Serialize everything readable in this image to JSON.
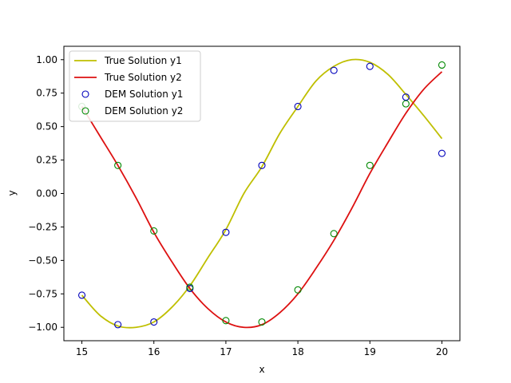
{
  "chart_data": {
    "type": "line",
    "title": "",
    "xlabel": "x",
    "ylabel": "y",
    "xlim": [
      14.75,
      20.25
    ],
    "ylim": [
      -1.1,
      1.1
    ],
    "xticks": [
      15,
      16,
      17,
      18,
      19,
      20
    ],
    "xtick_labels": [
      "15",
      "16",
      "17",
      "18",
      "19",
      "20"
    ],
    "yticks": [
      -1.0,
      -0.75,
      -0.5,
      -0.25,
      0.0,
      0.25,
      0.5,
      0.75,
      1.0
    ],
    "ytick_labels": [
      "−1.00",
      "−0.75",
      "−0.50",
      "−0.25",
      "0.00",
      "0.25",
      "0.50",
      "0.75",
      "1.00"
    ],
    "grid": false,
    "legend_position": "top-left",
    "series": [
      {
        "name": "True Solution y1",
        "kind": "line",
        "color": "#bfbf00",
        "x": [
          15.0,
          15.25,
          15.5,
          15.75,
          16.0,
          16.25,
          16.5,
          16.75,
          17.0,
          17.25,
          17.5,
          17.75,
          18.0,
          18.25,
          18.5,
          18.75,
          19.0,
          19.25,
          19.5,
          19.75,
          20.0
        ],
        "y": [
          -0.76,
          -0.91,
          -0.99,
          -1.0,
          -0.96,
          -0.85,
          -0.69,
          -0.48,
          -0.27,
          0.0,
          0.2,
          0.45,
          0.65,
          0.84,
          0.95,
          1.0,
          0.98,
          0.89,
          0.74,
          0.58,
          0.41
        ]
      },
      {
        "name": "True Solution y2",
        "kind": "line",
        "color": "#dd1111",
        "x": [
          15.0,
          15.25,
          15.5,
          15.75,
          16.0,
          16.25,
          16.5,
          16.75,
          17.0,
          17.25,
          17.5,
          17.75,
          18.0,
          18.25,
          18.5,
          18.75,
          19.0,
          19.25,
          19.5,
          19.75,
          20.0
        ],
        "y": [
          0.65,
          0.43,
          0.21,
          -0.03,
          -0.29,
          -0.51,
          -0.71,
          -0.86,
          -0.96,
          -1.0,
          -0.98,
          -0.89,
          -0.75,
          -0.56,
          -0.35,
          -0.11,
          0.15,
          0.38,
          0.6,
          0.78,
          0.91
        ]
      },
      {
        "name": "DEM Solution y1",
        "kind": "scatter",
        "color": "#0000bb",
        "x": [
          15.0,
          15.5,
          16.0,
          16.5,
          17.0,
          17.5,
          18.0,
          18.5,
          19.0,
          19.5,
          20.0
        ],
        "y": [
          -0.76,
          -0.98,
          -0.96,
          -0.71,
          -0.29,
          0.21,
          0.65,
          0.92,
          0.95,
          0.72,
          0.3
        ]
      },
      {
        "name": "DEM Solution y2",
        "kind": "scatter",
        "color": "#008800",
        "x": [
          15.0,
          15.5,
          16.0,
          16.5,
          17.0,
          17.5,
          18.0,
          18.5,
          19.0,
          19.5,
          20.0
        ],
        "y": [
          0.65,
          0.21,
          -0.28,
          -0.7,
          -0.95,
          -0.96,
          -0.72,
          -0.3,
          0.21,
          0.67,
          0.96
        ]
      }
    ]
  }
}
